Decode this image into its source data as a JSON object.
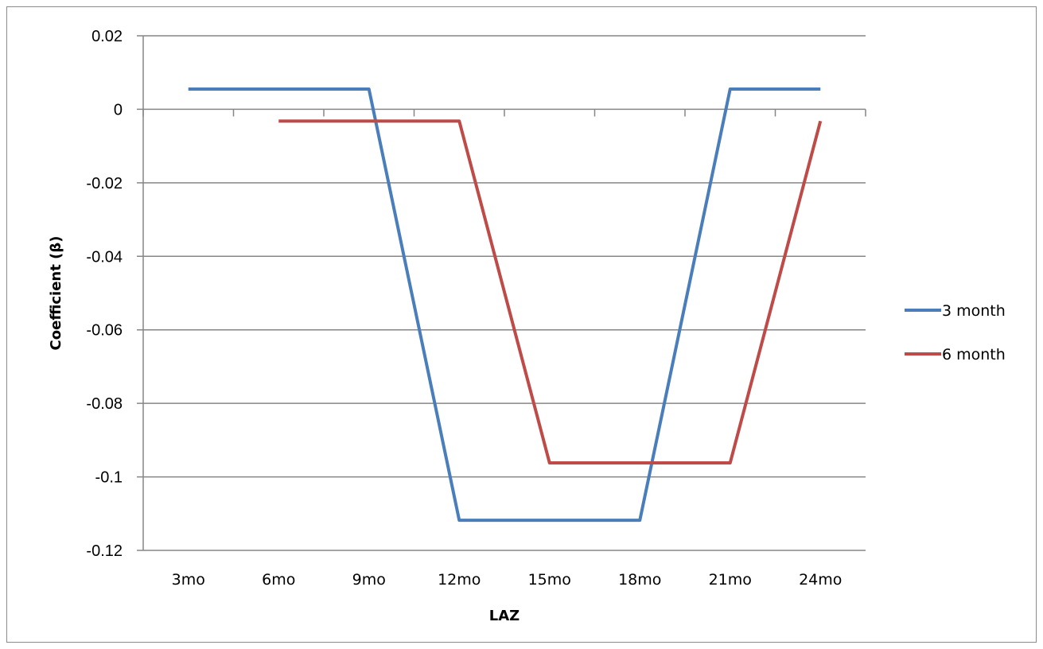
{
  "chart_data": {
    "type": "line",
    "title": "",
    "xlabel": "LAZ",
    "ylabel": "Coefficient  (β)",
    "categories": [
      "3mo",
      "6mo",
      "9mo",
      "12mo",
      "15mo",
      "18mo",
      "21mo",
      "24mo"
    ],
    "ylim": [
      -0.12,
      0.02
    ],
    "yticks": [
      0.02,
      0,
      -0.02,
      -0.04,
      -0.06,
      -0.08,
      -0.1,
      -0.12
    ],
    "ytick_labels": [
      "0.02",
      "0",
      "-0.02",
      "-0.04",
      "-0.06",
      "-0.08",
      "-0.1",
      "-0.12"
    ],
    "grid": true,
    "legend_position": "right",
    "series": [
      {
        "name": "3 month",
        "color": "#4a7ebb",
        "values": [
          0.0055,
          0.0055,
          0.0055,
          -0.1118,
          -0.1118,
          -0.1118,
          0.0055,
          0.0055
        ]
      },
      {
        "name": "6 month",
        "color": "#be4b48",
        "values": [
          null,
          -0.0032,
          -0.0032,
          -0.0032,
          -0.0962,
          -0.0962,
          -0.0962,
          -0.0032
        ]
      }
    ]
  }
}
